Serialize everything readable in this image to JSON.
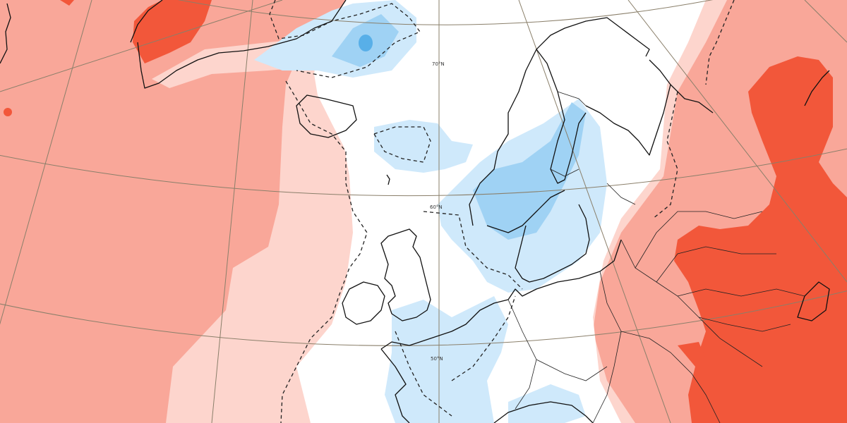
{
  "map": {
    "latitude_labels": {
      "lat70": "70°N",
      "lat60": "60°N",
      "lat50": "50°N"
    },
    "colors": {
      "warm_light": "#fdd5cd",
      "warm_medium": "#f9a799",
      "warm_strong": "#f2573a",
      "cold_light": "#cfe9fb",
      "cold_medium": "#9fd2f4",
      "cold_strong": "#58afe8",
      "coastline": "#111111",
      "graticule": "#8a7f6a",
      "neutral": "#ffffff"
    }
  }
}
